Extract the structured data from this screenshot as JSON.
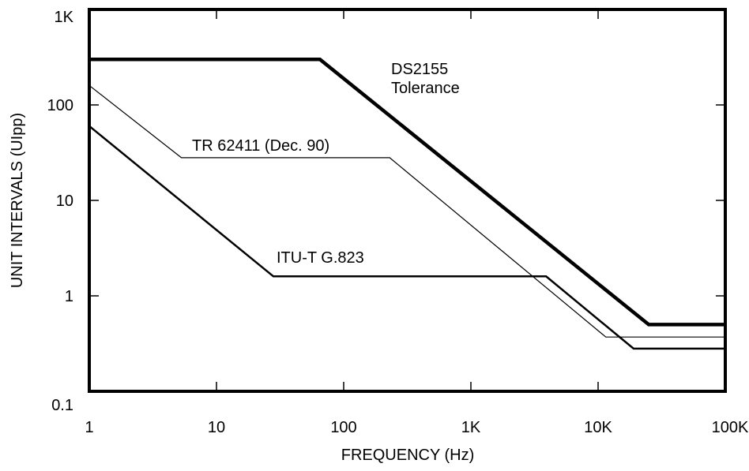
{
  "chart_data": {
    "type": "line",
    "title": "",
    "xlabel": "FREQUENCY (Hz)",
    "ylabel": "UNIT INTERVALS (UIpp)",
    "x_scale": "log",
    "y_scale": "log",
    "xlim": [
      1,
      100000
    ],
    "ylim": [
      0.1,
      1000
    ],
    "grid": false,
    "x_ticks": [
      {
        "value": 1,
        "label": "1"
      },
      {
        "value": 10,
        "label": "10"
      },
      {
        "value": 100,
        "label": "100"
      },
      {
        "value": 1000,
        "label": "1K"
      },
      {
        "value": 10000,
        "label": "10K"
      },
      {
        "value": 100000,
        "label": "100K"
      }
    ],
    "y_ticks": [
      {
        "value": 0.1,
        "label": "0.1"
      },
      {
        "value": 1,
        "label": "1"
      },
      {
        "value": 10,
        "label": "10"
      },
      {
        "value": 100,
        "label": "100"
      },
      {
        "value": 1000,
        "label": "1K"
      }
    ],
    "series": [
      {
        "label_lines": [
          "DS2155",
          "Tolerance"
        ],
        "color": "#000000",
        "weight": "heavy",
        "points": [
          [
            1,
            300
          ],
          [
            65,
            300
          ],
          [
            25000,
            0.5
          ],
          [
            100000,
            0.5
          ]
        ]
      },
      {
        "label_lines": [
          "TR 62411 (Dec. 90)"
        ],
        "color": "#000000",
        "weight": "thin",
        "points": [
          [
            1,
            160
          ],
          [
            5.3,
            28
          ],
          [
            230,
            28
          ],
          [
            11500,
            0.37
          ],
          [
            100000,
            0.37
          ]
        ]
      },
      {
        "label_lines": [
          "ITU-T G.823"
        ],
        "color": "#000000",
        "weight": "medium",
        "points": [
          [
            1,
            60
          ],
          [
            28,
            1.6
          ],
          [
            3900,
            1.6
          ],
          [
            19000,
            0.28
          ],
          [
            100000,
            0.28
          ]
        ]
      }
    ]
  }
}
